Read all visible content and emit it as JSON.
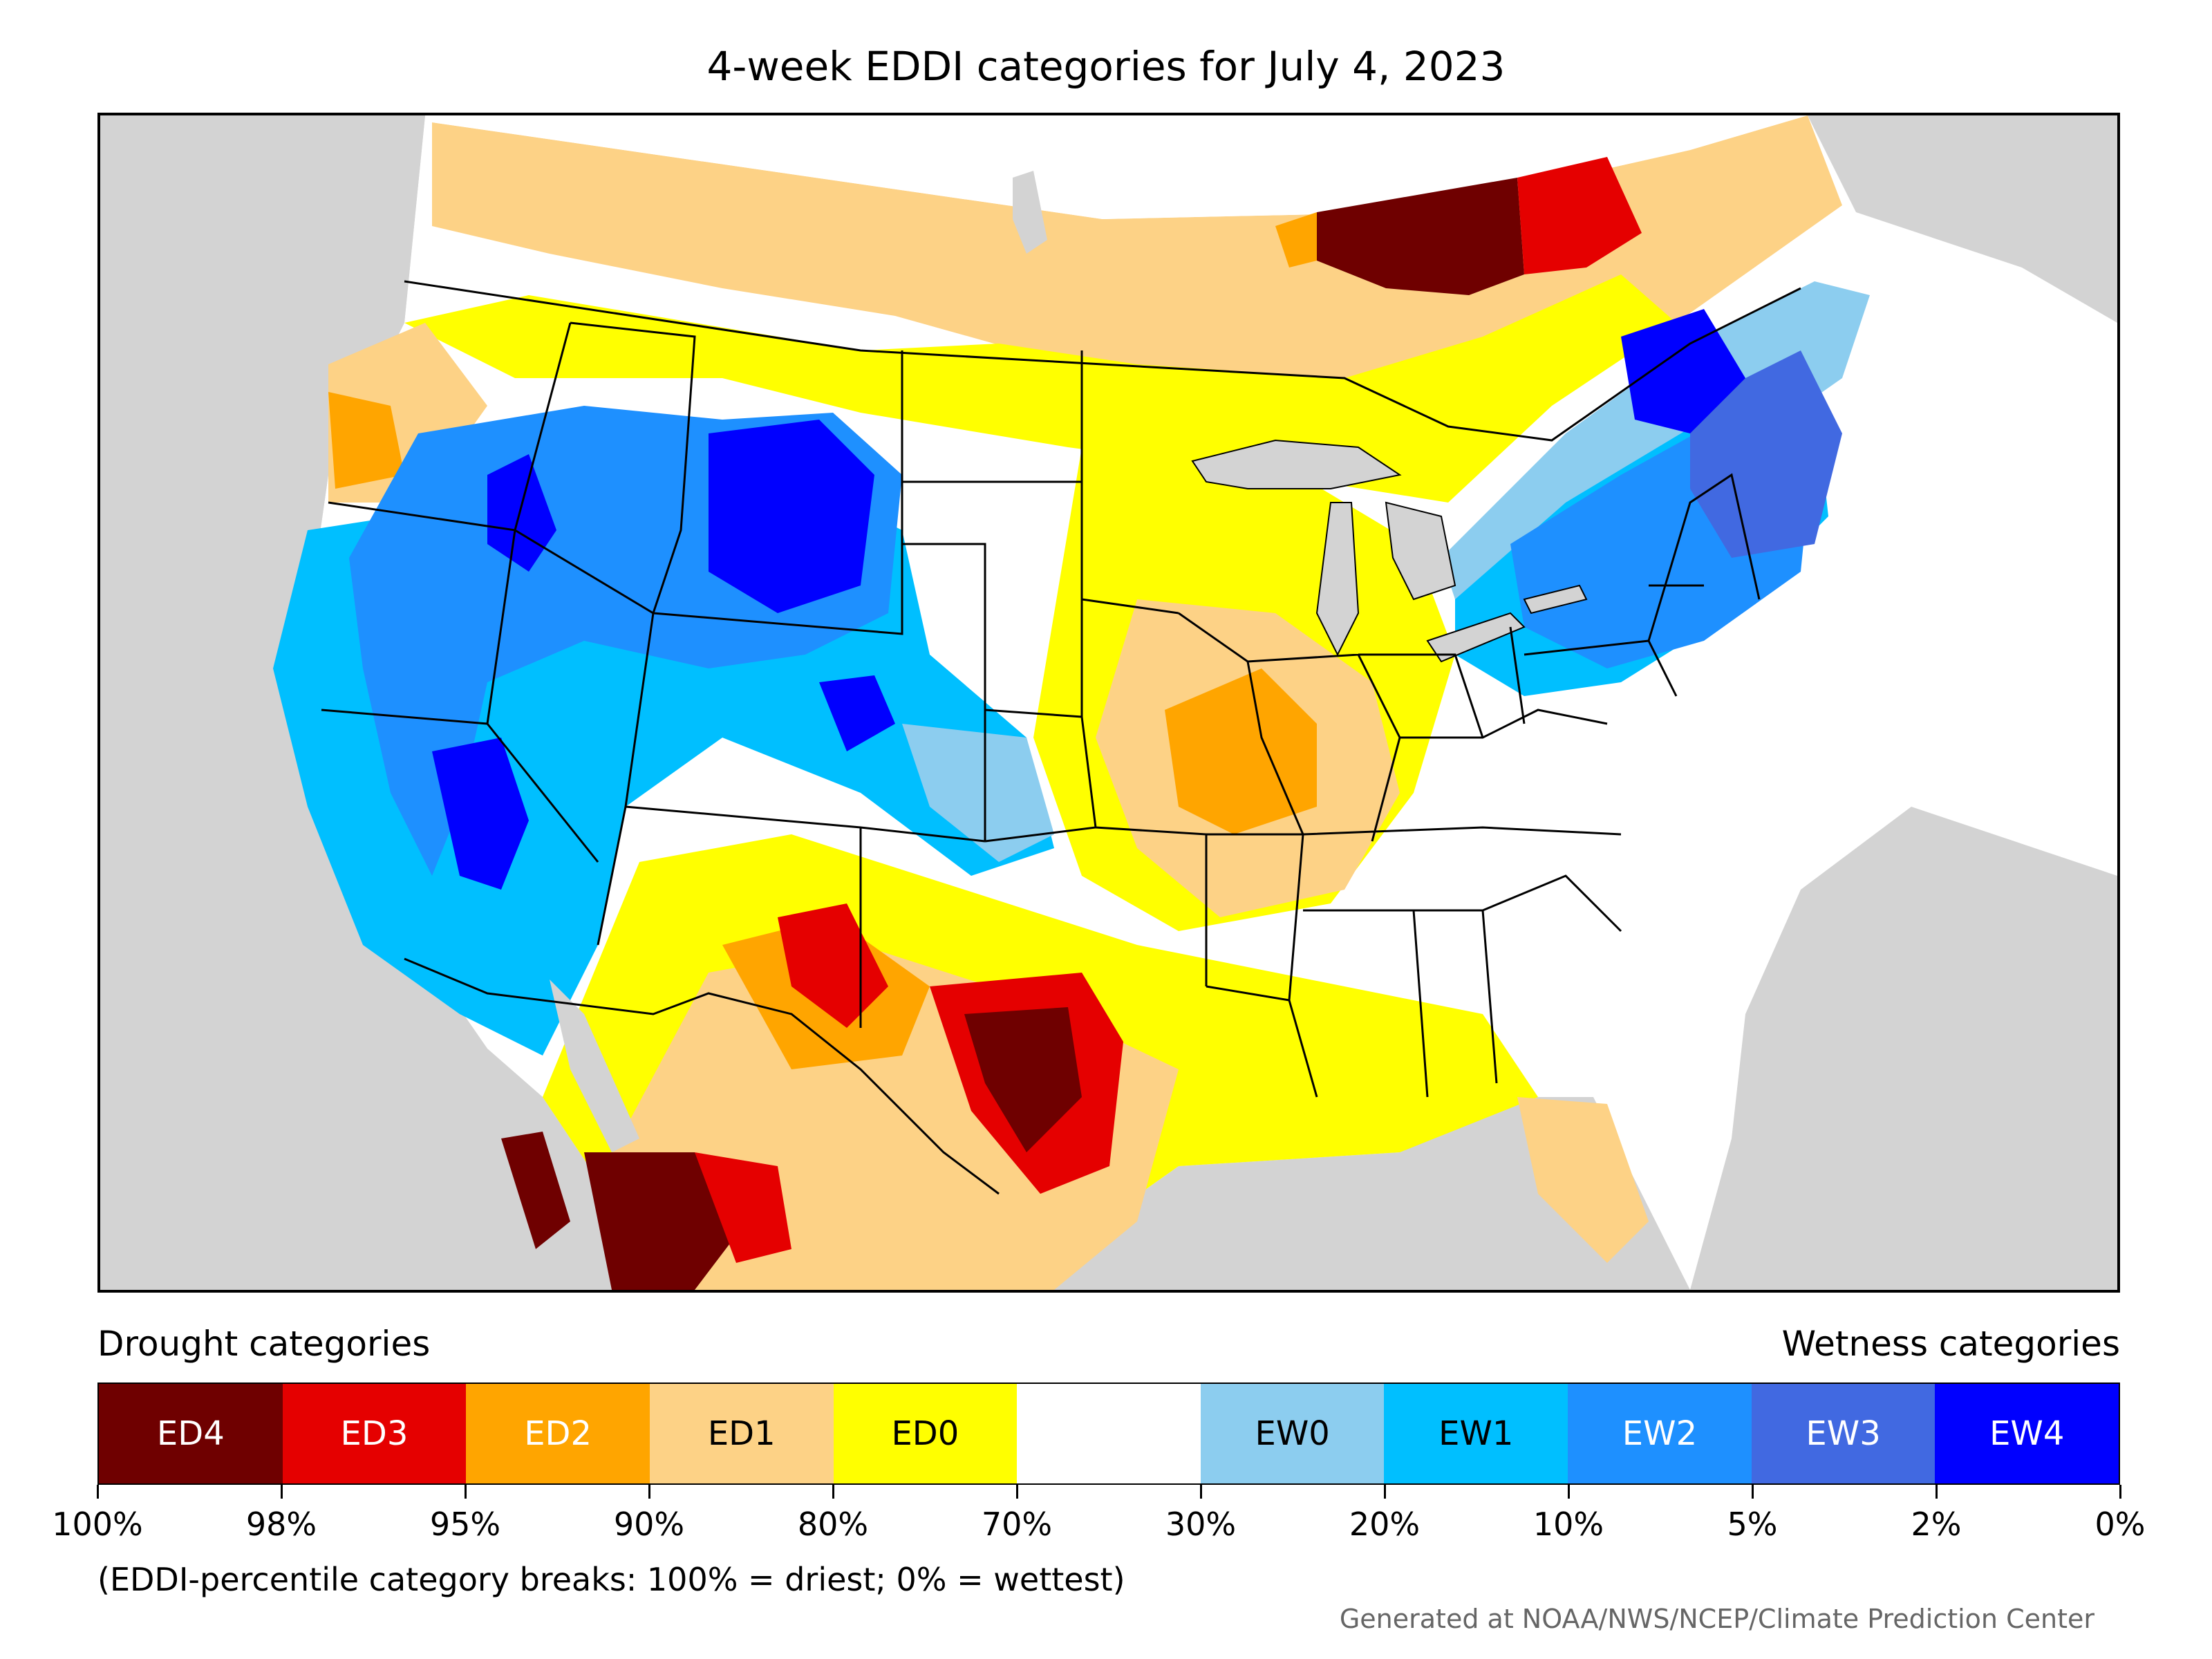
{
  "title": "4-week EDDI categories for July 4, 2023",
  "map": {
    "background_color": "#d3d3d3",
    "water_color": "#d3d3d3",
    "outline_color": "#000000"
  },
  "legend": {
    "drought_heading": "Drought categories",
    "wetness_heading": "Wetness categories",
    "categories": [
      {
        "label": "ED4",
        "color": "#6f0000",
        "text_color": "#ffffff"
      },
      {
        "label": "ED3",
        "color": "#e50000",
        "text_color": "#ffffff"
      },
      {
        "label": "ED2",
        "color": "#ffa500",
        "text_color": "#ffffff"
      },
      {
        "label": "ED1",
        "color": "#fdd286",
        "text_color": "#000000"
      },
      {
        "label": "ED0",
        "color": "#ffff00",
        "text_color": "#000000"
      },
      {
        "label": "",
        "color": "#ffffff",
        "text_color": "#000000"
      },
      {
        "label": "EW0",
        "color": "#8ccdef",
        "text_color": "#000000"
      },
      {
        "label": "EW1",
        "color": "#00bfff",
        "text_color": "#000000"
      },
      {
        "label": "EW2",
        "color": "#1e90ff",
        "text_color": "#ffffff"
      },
      {
        "label": "EW3",
        "color": "#4169e1",
        "text_color": "#ffffff"
      },
      {
        "label": "EW4",
        "color": "#0000ff",
        "text_color": "#ffffff"
      }
    ],
    "ticks": [
      "100%",
      "98%",
      "95%",
      "90%",
      "80%",
      "70%",
      "30%",
      "20%",
      "10%",
      "5%",
      "2%",
      "0%"
    ],
    "note": "(EDDI-percentile category breaks: 100% = driest; 0% = wettest)"
  },
  "credit": "Generated at NOAA/NWS/NCEP/Climate Prediction Center"
}
